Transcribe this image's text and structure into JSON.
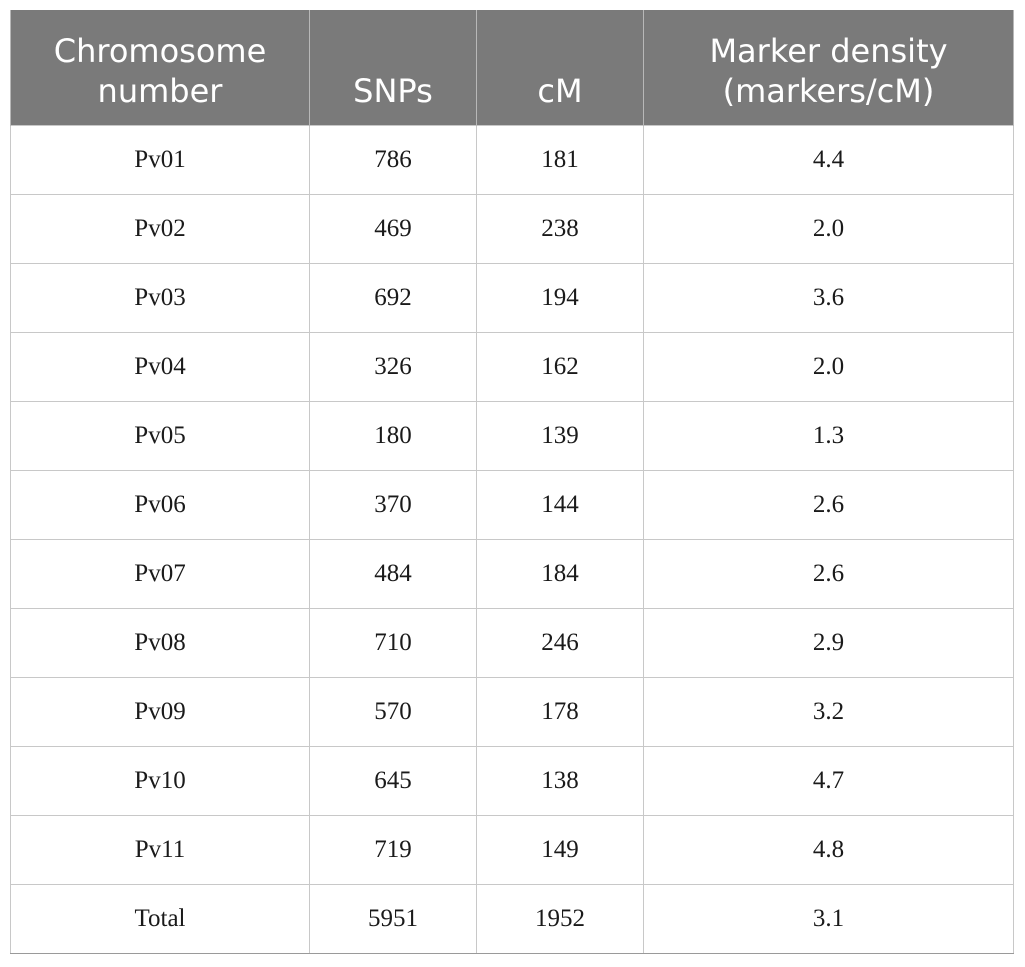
{
  "table": {
    "headers": [
      "Chromosome\nnumber",
      "SNPs",
      "cM",
      "Marker density\n(markers/cM)"
    ],
    "rows": [
      [
        "Pv01",
        "786",
        "181",
        "4.4"
      ],
      [
        "Pv02",
        "469",
        "238",
        "2.0"
      ],
      [
        "Pv03",
        "692",
        "194",
        "3.6"
      ],
      [
        "Pv04",
        "326",
        "162",
        "2.0"
      ],
      [
        "Pv05",
        "180",
        "139",
        "1.3"
      ],
      [
        "Pv06",
        "370",
        "144",
        "2.6"
      ],
      [
        "Pv07",
        "484",
        "184",
        "2.6"
      ],
      [
        "Pv08",
        "710",
        "246",
        "2.9"
      ],
      [
        "Pv09",
        "570",
        "178",
        "3.2"
      ],
      [
        "Pv10",
        "645",
        "138",
        "4.7"
      ],
      [
        "Pv11",
        "719",
        "149",
        "4.8"
      ],
      [
        "Total",
        "5951",
        "1952",
        "3.1"
      ]
    ]
  },
  "colors": {
    "header_background": "#7a7a7a",
    "header_text": "#ffffff",
    "grid_lines": "#c8c8c8"
  }
}
